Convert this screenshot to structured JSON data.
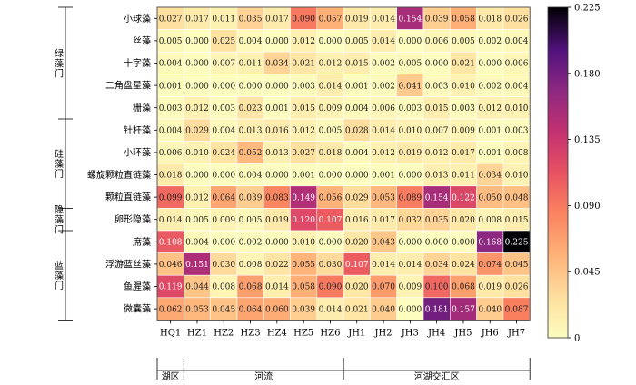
{
  "chart_data": {
    "type": "heatmap",
    "rows": [
      "小球藻",
      "丝藻",
      "十字藻",
      "二角盘星藻",
      "栅藻",
      "针杆藻",
      "小环藻",
      "螺旋颗粒直链藻",
      "颗粒直链藻",
      "卵形隐藻",
      "席藻",
      "浮游蓝丝藻",
      "鱼腥藻",
      "微囊藻"
    ],
    "columns": [
      "HQ1",
      "HZ1",
      "HZ2",
      "HZ3",
      "HZ4",
      "HZ5",
      "HZ6",
      "JH1",
      "JH2",
      "JH3",
      "JH4",
      "JH5",
      "JH6",
      "JH7"
    ],
    "values": [
      [
        0.027,
        0.017,
        0.011,
        0.035,
        0.017,
        0.09,
        0.057,
        0.019,
        0.014,
        0.154,
        0.039,
        0.058,
        0.018,
        0.026
      ],
      [
        0.005,
        0.0,
        0.025,
        0.004,
        0.0,
        0.012,
        0.0,
        0.005,
        0.014,
        0.0,
        0.006,
        0.005,
        0.002,
        0.004
      ],
      [
        0.004,
        0.0,
        0.007,
        0.011,
        0.034,
        0.021,
        0.012,
        0.015,
        0.002,
        0.005,
        0.0,
        0.021,
        0.0,
        0.006
      ],
      [
        0.001,
        0.0,
        0.0,
        0.0,
        0.0,
        0.003,
        0.014,
        0.001,
        0.002,
        0.041,
        0.003,
        0.01,
        0.002,
        0.004
      ],
      [
        0.003,
        0.012,
        0.003,
        0.023,
        0.001,
        0.015,
        0.009,
        0.004,
        0.006,
        0.003,
        0.015,
        0.003,
        0.012,
        0.01
      ],
      [
        0.004,
        0.029,
        0.004,
        0.013,
        0.016,
        0.012,
        0.005,
        0.028,
        0.014,
        0.01,
        0.007,
        0.009,
        0.001,
        0.003
      ],
      [
        0.006,
        0.01,
        0.024,
        0.052,
        0.013,
        0.027,
        0.018,
        0.004,
        0.012,
        0.019,
        0.012,
        0.017,
        0.001,
        0.008
      ],
      [
        0.018,
        0.0,
        0.0,
        0.004,
        0.0,
        0.001,
        0.0,
        0.0,
        0.001,
        0.0,
        0.013,
        0.011,
        0.034,
        0.01
      ],
      [
        0.099,
        0.012,
        0.064,
        0.039,
        0.083,
        0.149,
        0.056,
        0.029,
        0.053,
        0.089,
        0.154,
        0.122,
        0.05,
        0.048
      ],
      [
        0.014,
        0.005,
        0.009,
        0.005,
        0.019,
        0.12,
        0.107,
        0.016,
        0.017,
        0.032,
        0.035,
        0.02,
        0.008,
        0.015
      ],
      [
        0.108,
        0.004,
        0.0,
        0.002,
        0.0,
        0.01,
        0.0,
        0.02,
        0.043,
        0.0,
        0.0,
        0.0,
        0.168,
        0.225
      ],
      [
        0.046,
        0.151,
        0.03,
        0.008,
        0.022,
        0.055,
        0.03,
        0.107,
        0.014,
        0.014,
        0.034,
        0.024,
        0.074,
        0.045
      ],
      [
        0.119,
        0.044,
        0.008,
        0.068,
        0.014,
        0.058,
        0.09,
        0.02,
        0.07,
        0.009,
        0.1,
        0.068,
        0.019,
        0.026
      ],
      [
        0.062,
        0.053,
        0.045,
        0.064,
        0.06,
        0.039,
        0.014,
        0.021,
        0.04,
        0.0,
        0.181,
        0.157,
        0.04,
        0.087
      ]
    ],
    "row_groups": [
      {
        "label": "绿藻门",
        "rows": [
          0,
          4
        ]
      },
      {
        "label": "硅藻门",
        "rows": [
          5,
          8
        ]
      },
      {
        "label": "隐藻门",
        "rows": [
          9,
          9
        ]
      },
      {
        "label": "蓝藻门",
        "rows": [
          10,
          13
        ]
      }
    ],
    "column_groups": [
      {
        "label": "湖区",
        "cols": [
          0,
          0
        ]
      },
      {
        "label": "河流",
        "cols": [
          1,
          6
        ]
      },
      {
        "label": "河湖交汇区",
        "cols": [
          7,
          13
        ]
      }
    ],
    "colorbar": {
      "min": 0,
      "max": 0.225,
      "ticks": [
        "0",
        "0.045",
        "0.090",
        "0.135",
        "0.180",
        "0.225"
      ],
      "colormap": "magma_r"
    },
    "value_format_decimals": 3,
    "grid": true
  }
}
